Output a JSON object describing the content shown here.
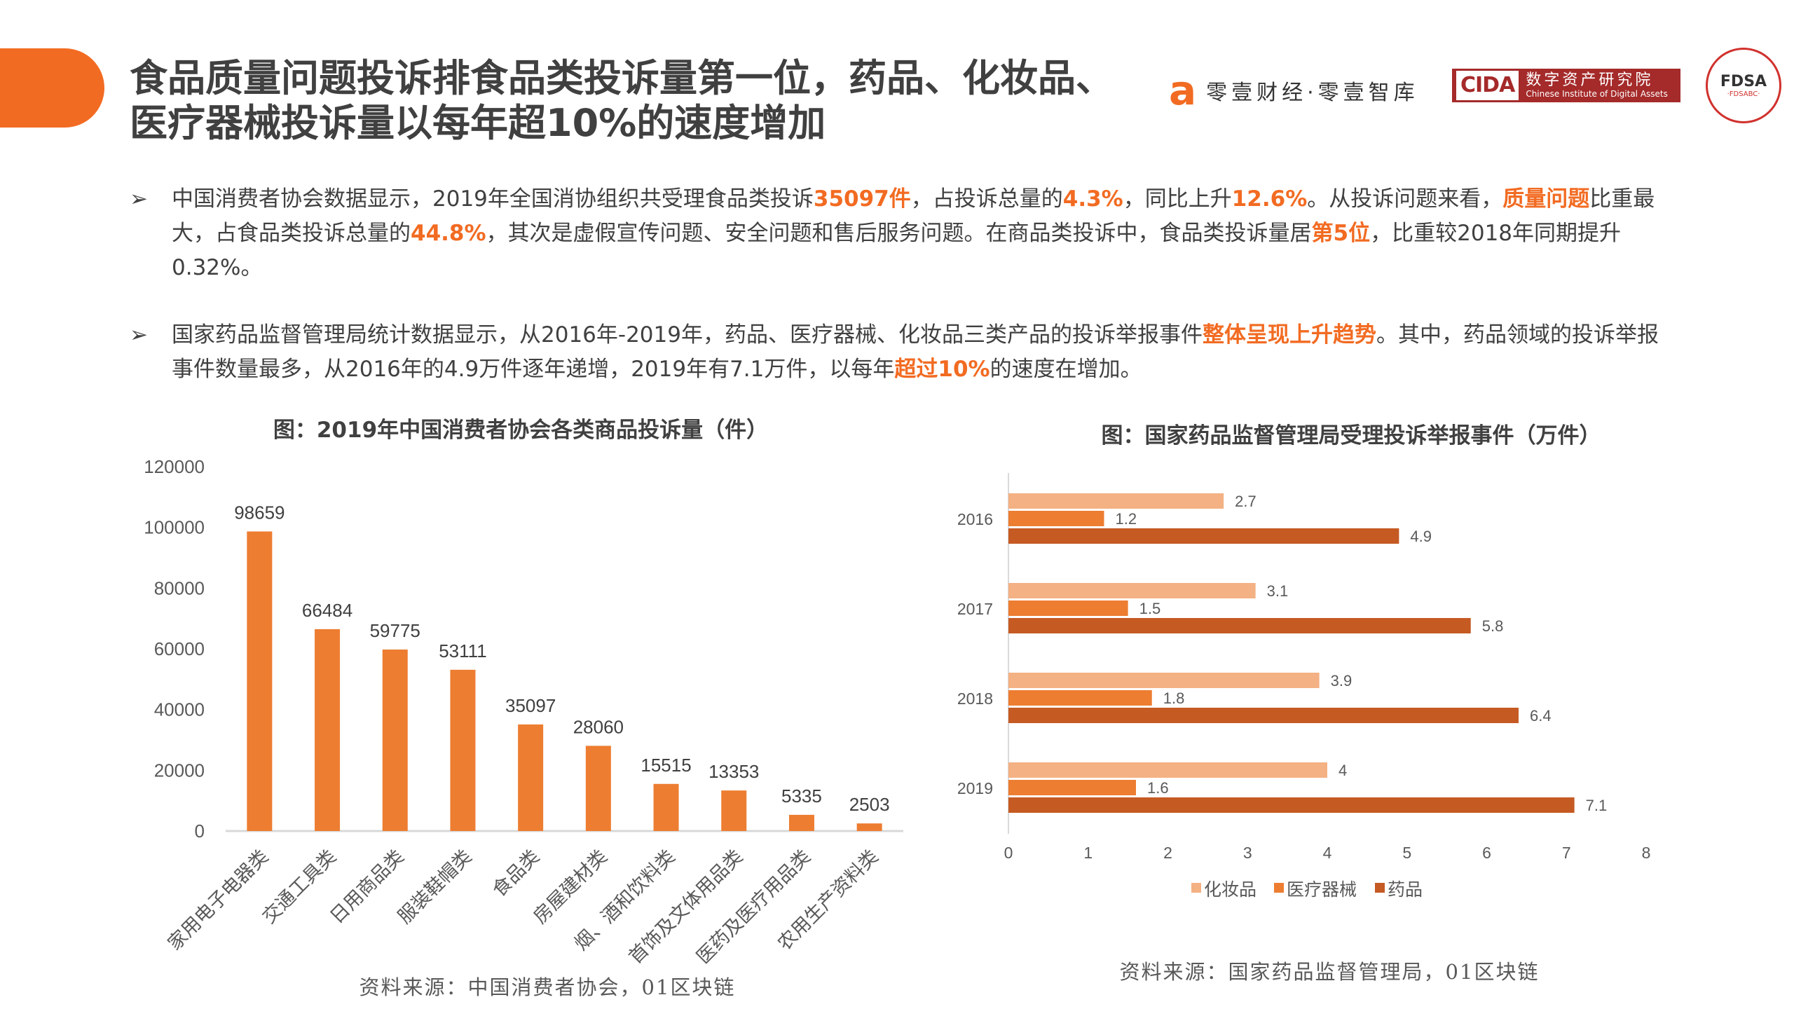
{
  "header": {
    "title_line1": "食品质量问题投诉排食品类投诉量第一位，药品、化妆品、",
    "title_line2": "医疗器械投诉量以每年超10%的速度增加",
    "logos": {
      "lingyi_mark": "a",
      "lingyi_text": "零壹财经·零壹智库",
      "cida_mark": "CIDA",
      "cida_cn": "数字资产研究院",
      "cida_en": "Chinese Institute of Digital Assets",
      "seal_mark": "FDSA",
      "seal_bottom": "·FDSABC·"
    }
  },
  "bullets": [
    {
      "arrow": "➢",
      "parts": [
        {
          "t": "中国消费者协会数据显示，2019年全国消协组织共受理食品类投诉",
          "h": false
        },
        {
          "t": "35097件",
          "h": true
        },
        {
          "t": "，占投诉总量的",
          "h": false
        },
        {
          "t": "4.3%",
          "h": true
        },
        {
          "t": "，同比上升",
          "h": false
        },
        {
          "t": "12.6%",
          "h": true
        },
        {
          "t": "。从投诉问题来看，",
          "h": false
        },
        {
          "t": "质量问题",
          "h": true
        },
        {
          "t": "比重最大，占食品类投诉总量的",
          "h": false
        },
        {
          "t": "44.8%",
          "h": true
        },
        {
          "t": "，其次是虚假宣传问题、安全问题和售后服务问题。在商品类投诉中，食品类投诉量居",
          "h": false
        },
        {
          "t": "第5位",
          "h": true
        },
        {
          "t": "，比重较2018年同期提升0.32%。",
          "h": false
        }
      ]
    },
    {
      "arrow": "➢",
      "parts": [
        {
          "t": "国家药品监督管理局统计数据显示，从2016年-2019年，药品、医疗器械、化妆品三类产品的投诉举报事件",
          "h": false
        },
        {
          "t": "整体呈现上升趋势",
          "h": true
        },
        {
          "t": "。其中，药品领域的投诉举报事件数量最多，从2016年的4.9万件逐年递增，2019年有7.1万件，以每年",
          "h": false
        },
        {
          "t": "超过10%",
          "h": true
        },
        {
          "t": "的速度在增加。",
          "h": false
        }
      ]
    }
  ],
  "colors": {
    "accent": "#f26b22",
    "bar": "#ed7d31",
    "cosmetics": "#f4b183",
    "medical": "#ed7d31",
    "drug": "#c55a23"
  },
  "chart_data": [
    {
      "type": "bar",
      "title": "图：2019年中国消费者协会各类商品投诉量（件）",
      "categories": [
        "家用电子电器类",
        "交通工具类",
        "日用商品类",
        "服装鞋帽类",
        "食品类",
        "房屋建材类",
        "烟、酒和饮料类",
        "首饰及文体用品类",
        "医药及医疗用品类",
        "农用生产资料类"
      ],
      "values": [
        98659,
        66484,
        59775,
        53111,
        35097,
        28060,
        15515,
        13353,
        5335,
        2503
      ],
      "ylim": [
        0,
        120000
      ],
      "yticks": [
        0,
        20000,
        40000,
        60000,
        80000,
        100000,
        120000
      ],
      "grid": false,
      "source": "资料来源：中国消费者协会，01区块链"
    },
    {
      "type": "bar",
      "orientation": "horizontal",
      "title": "图：国家药品监督管理局受理投诉举报事件（万件）",
      "categories": [
        "2016",
        "2017",
        "2018",
        "2019"
      ],
      "series": [
        {
          "name": "化妆品",
          "values": [
            2.7,
            3.1,
            3.9,
            4
          ]
        },
        {
          "name": "医疗器械",
          "values": [
            1.2,
            1.5,
            1.8,
            1.6
          ]
        },
        {
          "name": "药品",
          "values": [
            4.9,
            5.8,
            6.4,
            7.1
          ]
        }
      ],
      "xlim": [
        0,
        8
      ],
      "xticks": [
        0,
        1,
        2,
        3,
        4,
        5,
        6,
        7,
        8
      ],
      "legend": "bottom",
      "grid": false,
      "source": "资料来源：国家药品监督管理局，01区块链"
    }
  ]
}
